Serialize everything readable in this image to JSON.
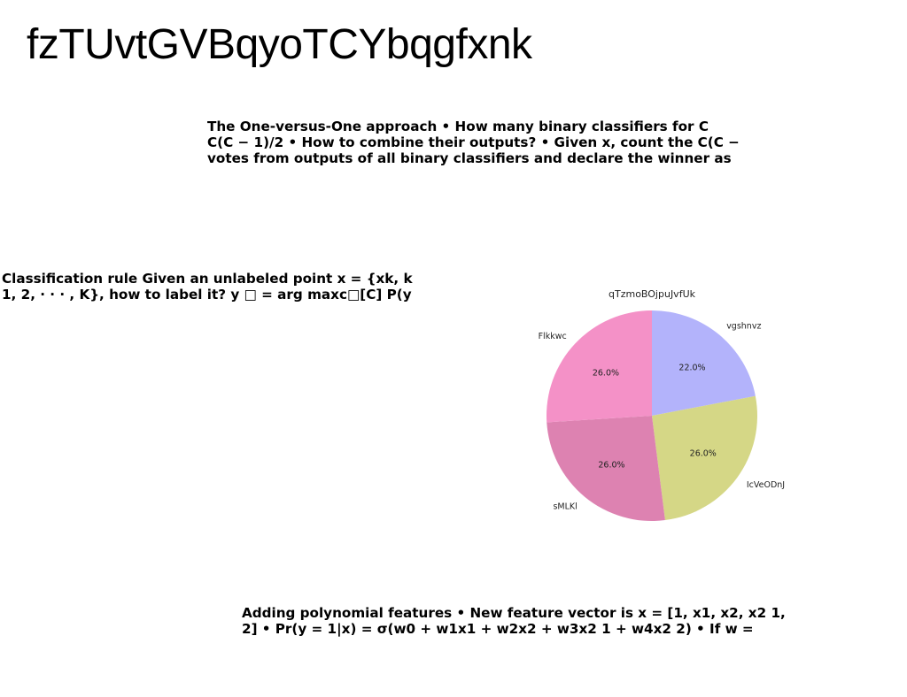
{
  "page": {
    "title": "fzTUvtGVBqyoTCYbqgfxnk"
  },
  "paragraphs": {
    "one_vs_one": {
      "lines": [
        "The One-versus-One approach • How many binary classifiers for C",
        "C(C − 1)/2 • How to combine their outputs? • Given x, count the C(C −",
        "votes from outputs of all binary classifiers and declare the winner as"
      ]
    },
    "classification_rule": {
      "lines": [
        "Classification rule Given an unlabeled point x = {xk, k",
        "1, 2, · · · , K}, how to label it? y □ = arg maxc□[C] P(y"
      ]
    },
    "polynomial": {
      "lines": [
        "Adding polynomial features • New feature vector is x = [1, x1, x2, x2 1,",
        "2] • Pr(y = 1|x) = σ(w0 + w1x1 + w2x2 + w3x2 1 + w4x2 2) • If w ="
      ]
    }
  },
  "chart_data": {
    "type": "pie",
    "title": "qTzmoBOjpuJvfUk",
    "start_angle_deg": 90,
    "direction": "clockwise",
    "slices": [
      {
        "label": "vgshnvz",
        "value": 22.0,
        "pct_label": "22.0%",
        "color": "#b3b3fb"
      },
      {
        "label": "IcVeODnJ",
        "value": 26.0,
        "pct_label": "26.0%",
        "color": "#d5d786"
      },
      {
        "label": "sMLKl",
        "value": 26.0,
        "pct_label": "26.0%",
        "color": "#dd82b1"
      },
      {
        "label": "Flkkwc",
        "value": 26.0,
        "pct_label": "26.0%",
        "color": "#f491c7"
      }
    ]
  }
}
